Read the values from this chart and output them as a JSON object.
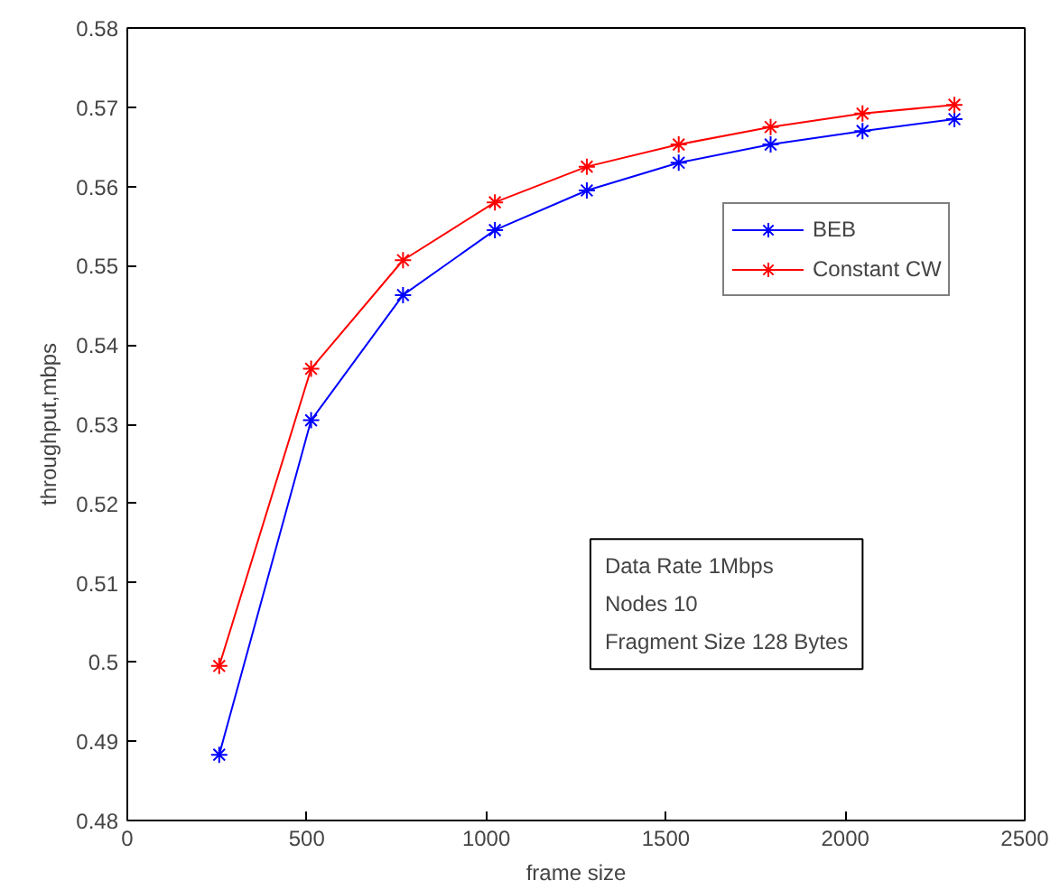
{
  "chart_data": {
    "type": "line",
    "xlabel": "frame size",
    "ylabel": "throughput,mbps",
    "x": [
      256,
      512,
      768,
      1024,
      1280,
      1536,
      1792,
      2048,
      2304
    ],
    "series": [
      {
        "name": "BEB",
        "color": "#0000ff",
        "values": [
          0.4883,
          0.5305,
          0.5463,
          0.5545,
          0.5595,
          0.563,
          0.5653,
          0.567,
          0.5685
        ]
      },
      {
        "name": "Constant CW",
        "color": "#ff0000",
        "values": [
          0.4995,
          0.537,
          0.5507,
          0.558,
          0.5625,
          0.5653,
          0.5675,
          0.5692,
          0.5703
        ]
      }
    ],
    "xlim": [
      0,
      2500
    ],
    "xticks": [
      0,
      500,
      1000,
      1500,
      2000,
      2500
    ],
    "ylim": [
      0.48,
      0.58
    ],
    "yticks": [
      0.48,
      0.49,
      0.5,
      0.51,
      0.52,
      0.53,
      0.54,
      0.55,
      0.56,
      0.57,
      0.58
    ],
    "legend": "top right",
    "marker": "cross",
    "line_style": "solid",
    "grid": false,
    "annotations": [
      "Data Rate 1Mbps",
      "Nodes 10",
      "Fragment Size 128 Bytes"
    ]
  }
}
